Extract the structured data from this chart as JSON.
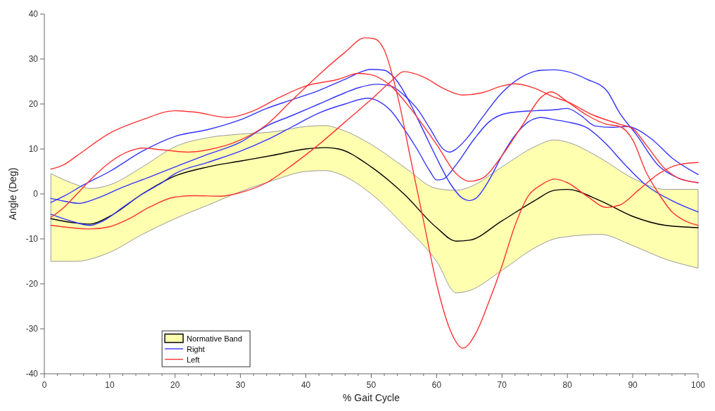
{
  "chart_data": {
    "type": "line",
    "xlabel": "% Gait Cycle",
    "ylabel": "Angle (Deg)",
    "xlim": [
      0,
      100
    ],
    "ylim": [
      -40,
      40
    ],
    "xticks": [
      0,
      {
        "value": 2,
        "label": null
      },
      {
        "value": 4,
        "label": null
      },
      {
        "value": 6,
        "label": null
      },
      {
        "value": 8,
        "label": null
      },
      10,
      {
        "value": 12,
        "label": null
      },
      {
        "value": 14,
        "label": null
      },
      {
        "value": 16,
        "label": null
      },
      {
        "value": 18,
        "label": null
      },
      20,
      {
        "value": 22,
        "label": null
      },
      {
        "value": 24,
        "label": null
      },
      {
        "value": 26,
        "label": null
      },
      {
        "value": 28,
        "label": null
      },
      30,
      {
        "value": 32,
        "label": null
      },
      {
        "value": 34,
        "label": null
      },
      {
        "value": 36,
        "label": null
      },
      {
        "value": 38,
        "label": null
      },
      40,
      {
        "value": 42,
        "label": null
      },
      {
        "value": 44,
        "label": null
      },
      {
        "value": 46,
        "label": null
      },
      {
        "value": 48,
        "label": null
      },
      50,
      {
        "value": 52,
        "label": null
      },
      {
        "value": 54,
        "label": null
      },
      {
        "value": 56,
        "label": null
      },
      {
        "value": 58,
        "label": null
      },
      60,
      {
        "value": 62,
        "label": null
      },
      {
        "value": 64,
        "label": null
      },
      {
        "value": 66,
        "label": null
      },
      {
        "value": 68,
        "label": null
      },
      70,
      {
        "value": 72,
        "label": null
      },
      {
        "value": 74,
        "label": null
      },
      {
        "value": 76,
        "label": null
      },
      {
        "value": 78,
        "label": null
      },
      80,
      {
        "value": 82,
        "label": null
      },
      {
        "value": 84,
        "label": null
      },
      {
        "value": 86,
        "label": null
      },
      {
        "value": 88,
        "label": null
      },
      90,
      {
        "value": 92,
        "label": null
      },
      {
        "value": 94,
        "label": null
      },
      {
        "value": 96,
        "label": null
      },
      {
        "value": 98,
        "label": null
      },
      100
    ],
    "yticks": [
      -40,
      -30,
      -20,
      -10,
      0,
      10,
      20,
      30,
      40
    ],
    "grid": false,
    "legend": "bottom left",
    "marker": "none",
    "line_style": "solid",
    "series": [
      {
        "name": "Normative Band",
        "color": "#000000",
        "x": [
          1,
          5,
          7,
          10,
          15,
          20,
          25,
          30,
          35,
          40,
          43,
          45,
          50,
          55,
          60,
          63,
          65,
          70,
          75,
          78,
          80,
          85,
          90,
          95,
          100
        ],
        "values": [
          -5.5,
          -6.5,
          -6.7,
          -5,
          0,
          4,
          6,
          7.3,
          8.6,
          10,
          10.3,
          10,
          6,
          0,
          -7.5,
          -10.5,
          -10.3,
          -6,
          -1.5,
          0.8,
          1,
          -1.5,
          -5,
          -7,
          -7.5
        ],
        "lower": [
          -15,
          -15,
          -14.5,
          -13,
          -9,
          -5.5,
          -2.5,
          0.5,
          3,
          5,
          5.2,
          4.5,
          0,
          -7,
          -15,
          -22,
          -21.5,
          -17,
          -12,
          -10,
          -9.5,
          -9,
          -11.5,
          -14.5,
          -16.5
        ],
        "upper": [
          4.5,
          2,
          1.2,
          2,
          6,
          10.5,
          12.5,
          13.3,
          13.8,
          15,
          15.2,
          14.5,
          11,
          6,
          1.2,
          0.8,
          1.5,
          6,
          10.5,
          12,
          11.5,
          8,
          3.5,
          1,
          1
        ]
      },
      {
        "name": "Right",
        "color": "#3333ff",
        "x": [
          1,
          3,
          6,
          10,
          15,
          20,
          25,
          30,
          34,
          38,
          42,
          46,
          50,
          52,
          54,
          56,
          58,
          60,
          62,
          64,
          65,
          66,
          68,
          70,
          72,
          74,
          76,
          78,
          80,
          83,
          86,
          88.5,
          92,
          96,
          100
        ],
        "values": [
          -1.9,
          -0.5,
          2,
          5,
          9.5,
          12.8,
          14.3,
          16.5,
          19,
          21,
          23,
          25.5,
          27.7,
          27.5,
          25,
          20,
          14,
          8,
          2.5,
          -1,
          -1.5,
          -1,
          3,
          8.5,
          13,
          16,
          17,
          16.5,
          16,
          14.7,
          11,
          7,
          2,
          -1.5,
          -4
        ]
      },
      {
        "color": "#3333ff",
        "x": [
          1,
          3,
          5.3,
          8,
          12,
          16,
          20,
          25,
          30,
          34,
          38,
          42,
          46,
          48,
          51,
          53,
          55,
          57,
          59,
          61,
          62,
          63,
          65,
          67,
          70,
          73,
          76,
          78,
          80,
          83,
          86,
          88,
          90.5,
          94,
          97,
          100
        ],
        "values": [
          -1,
          -1.6,
          -2.1,
          -1,
          1.5,
          3.7,
          6,
          8.8,
          11.5,
          15.1,
          17.5,
          20,
          22.5,
          23.6,
          24.4,
          24,
          22,
          19,
          14.5,
          10,
          9.3,
          10,
          13,
          17,
          22.5,
          26,
          27.5,
          27.6,
          27.2,
          25.5,
          23,
          18,
          13.3,
          6.2,
          3.5,
          2.5
        ]
      },
      {
        "color": "#3333ff",
        "x": [
          1,
          4,
          7,
          9,
          12,
          15,
          18,
          20,
          25,
          30,
          34,
          38,
          42,
          46,
          49.5,
          51,
          53,
          55,
          57,
          59,
          60,
          61,
          63,
          65.8,
          68,
          71,
          75,
          78,
          80,
          82,
          84.3,
          87,
          89,
          92.8,
          96,
          100
        ],
        "values": [
          -4.5,
          -6,
          -7,
          -6,
          -3,
          0,
          2.5,
          4.5,
          7,
          9.5,
          12,
          15,
          18,
          20,
          21.3,
          20.7,
          18.5,
          14.5,
          10,
          5,
          3.1,
          3.3,
          6.5,
          12.3,
          16,
          18,
          18.5,
          18.7,
          19,
          17.5,
          15.1,
          14.8,
          15,
          12.3,
          8,
          4.3
        ]
      },
      {
        "name": "Left",
        "color": "#ff3333",
        "x": [
          1,
          3,
          5,
          10,
          15,
          20,
          23,
          28,
          32,
          36,
          40,
          45,
          48,
          50,
          53,
          56,
          60,
          63,
          65,
          67,
          70,
          73,
          76,
          77.5,
          80,
          83,
          86,
          88,
          90,
          92,
          94,
          96,
          98,
          100
        ],
        "values": [
          5.5,
          6.5,
          8.5,
          13.5,
          16.5,
          18.5,
          18.2,
          17,
          18.5,
          21.5,
          24,
          25.5,
          26.8,
          26.5,
          24,
          19,
          11,
          4.5,
          2.8,
          3.5,
          8.5,
          15,
          21.5,
          22.7,
          20.5,
          17.5,
          15.5,
          15,
          12,
          5,
          0,
          -4,
          -6,
          -7
        ]
      },
      {
        "color": "#ff3333",
        "x": [
          1,
          3,
          5,
          8,
          10,
          13,
          15,
          18,
          22,
          25,
          30,
          34,
          38,
          42,
          46,
          49,
          50.5,
          52,
          54,
          56,
          58,
          60,
          62,
          64,
          66,
          68,
          70,
          72,
          74,
          76,
          78,
          80,
          83,
          86,
          88,
          91,
          94,
          97,
          100
        ],
        "values": [
          -5.2,
          -3,
          0,
          4.5,
          7,
          9.5,
          10.2,
          9.8,
          9.3,
          9.8,
          12,
          15.4,
          21,
          26.5,
          31.5,
          34.7,
          34.5,
          32,
          22,
          8,
          -6,
          -20,
          -30,
          -34.3,
          -31,
          -24,
          -16,
          -7,
          -0.5,
          2,
          3.3,
          2.5,
          -0.5,
          -3,
          -2.5,
          1,
          4.5,
          6.5,
          7
        ]
      },
      {
        "color": "#ff3333",
        "x": [
          1,
          4,
          7,
          10,
          13,
          16,
          20,
          23,
          27,
          30,
          34,
          38,
          42,
          46,
          50,
          53,
          55,
          58,
          61,
          64,
          67,
          70,
          72,
          75,
          78,
          80,
          84,
          88,
          90,
          92,
          95,
          97,
          100
        ],
        "values": [
          -7,
          -7.5,
          -7.8,
          -7.3,
          -5.5,
          -3,
          -0.7,
          -0.4,
          -0.5,
          0.3,
          2.5,
          6.5,
          11,
          16,
          21,
          25,
          27.2,
          26,
          23.5,
          22,
          22.5,
          24,
          24.5,
          23.5,
          21.5,
          20.5,
          17.5,
          15.5,
          14.5,
          11,
          5.5,
          3.5,
          2.5
        ]
      }
    ]
  }
}
